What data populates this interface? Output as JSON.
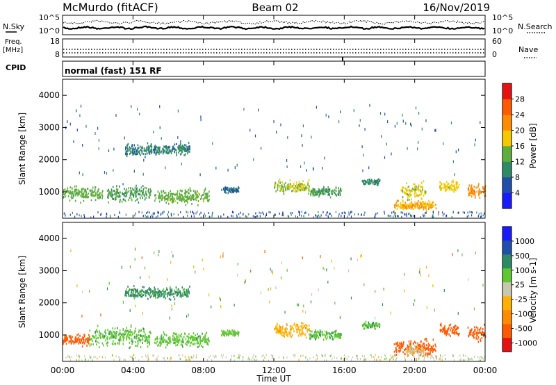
{
  "header": {
    "station": "McMurdo (fitACF)",
    "beam": "Beam 02",
    "date": "16/Nov/2019"
  },
  "noise_panel": {
    "left_label": "N.Sky",
    "right_label": "N.Search",
    "left_ticks": [
      "10^5",
      "10^0"
    ],
    "right_ticks": [
      "10^5",
      "10^0"
    ]
  },
  "freq_panel": {
    "left_label_line1": "Freq.",
    "left_label_line2": "[MHz]",
    "left_ticks": [
      "18",
      "8"
    ],
    "right_label": "Nave",
    "right_ticks": [
      "60",
      "0"
    ]
  },
  "cpid_panel": {
    "label": "CPID",
    "mode_text": "normal (fast) 151 RF"
  },
  "x_axis": {
    "label": "Time UT",
    "tick_labels": [
      "00:00",
      "04:00",
      "08:00",
      "12:00",
      "16:00",
      "20:00",
      "00:00"
    ]
  },
  "colors": {
    "power_scale": [
      "#1a1aff",
      "#1f4faa",
      "#2e8a64",
      "#5fae3d",
      "#f5c800",
      "#ff8c00",
      "#ff5a00",
      "#e81010"
    ],
    "velocity_scale": [
      "#e81010",
      "#ff5a00",
      "#ff8c00",
      "#ffb000",
      "#c8c8b0",
      "#5fc830",
      "#2e8a64",
      "#1f4faa",
      "#1a1aff"
    ]
  },
  "chart_data": [
    {
      "type": "heatmap",
      "title": "",
      "xlabel": "",
      "ylabel": "Slant Range [km]",
      "ylim": [
        180,
        4500
      ],
      "y_ticks": [
        "4000",
        "3000",
        "2000",
        "1000"
      ],
      "x_ticks": [
        "00:00",
        "04:00",
        "08:00",
        "12:00",
        "16:00",
        "20:00",
        "00:00"
      ],
      "colorbar_label": "Power [dB]",
      "colorbar_ticks": [
        "28",
        "24",
        "20",
        "16",
        "12",
        "8",
        "4"
      ],
      "colorbar_range": [
        0,
        32
      ],
      "features": [
        {
          "t_start": 0.0,
          "t_end": 2.3,
          "range_km": 950,
          "spread_km": 300,
          "value": 14
        },
        {
          "t_start": 2.5,
          "t_end": 5.0,
          "range_km": 950,
          "spread_km": 350,
          "value": 12
        },
        {
          "t_start": 5.2,
          "t_end": 8.3,
          "range_km": 850,
          "spread_km": 300,
          "value": 14
        },
        {
          "t_start": 3.5,
          "t_end": 7.2,
          "range_km": 2300,
          "spread_km": 250,
          "value": 9
        },
        {
          "t_start": 9.0,
          "t_end": 10.0,
          "range_km": 1050,
          "spread_km": 120,
          "value": 8
        },
        {
          "t_start": 12.0,
          "t_end": 14.0,
          "range_km": 1150,
          "spread_km": 300,
          "value": 16
        },
        {
          "t_start": 14.0,
          "t_end": 15.8,
          "range_km": 1000,
          "spread_km": 200,
          "value": 12
        },
        {
          "t_start": 17.0,
          "t_end": 18.0,
          "range_km": 1300,
          "spread_km": 150,
          "value": 10
        },
        {
          "t_start": 18.8,
          "t_end": 21.2,
          "range_km": 550,
          "spread_km": 200,
          "value": 20
        },
        {
          "t_start": 19.2,
          "t_end": 20.6,
          "range_km": 1000,
          "spread_km": 350,
          "value": 17
        },
        {
          "t_start": 21.4,
          "t_end": 22.5,
          "range_km": 1150,
          "spread_km": 250,
          "value": 18
        },
        {
          "t_start": 23.0,
          "t_end": 24.0,
          "range_km": 1050,
          "spread_km": 300,
          "value": 22
        }
      ]
    },
    {
      "type": "heatmap",
      "title": "",
      "xlabel": "Time UT",
      "ylabel": "Slant Range [km]",
      "ylim": [
        180,
        4500
      ],
      "y_ticks": [
        "4000",
        "3000",
        "2000",
        "1000"
      ],
      "x_ticks": [
        "00:00",
        "04:00",
        "08:00",
        "12:00",
        "16:00",
        "20:00",
        "00:00"
      ],
      "colorbar_label": "Velocity [m s-1]",
      "colorbar_ticks": [
        "1000",
        "500",
        "100",
        "25",
        "-25",
        "-100",
        "-500",
        "-1000"
      ],
      "colorbar_range": [
        -1000,
        1000
      ],
      "features": [
        {
          "t_start": 0.0,
          "t_end": 1.5,
          "range_km": 850,
          "spread_km": 250,
          "value": -150
        },
        {
          "t_start": 1.5,
          "t_end": 5.0,
          "range_km": 950,
          "spread_km": 400,
          "value": 80
        },
        {
          "t_start": 5.2,
          "t_end": 8.3,
          "range_km": 850,
          "spread_km": 300,
          "value": 70
        },
        {
          "t_start": 3.5,
          "t_end": 7.2,
          "range_km": 2300,
          "spread_km": 250,
          "value": 120
        },
        {
          "t_start": 9.0,
          "t_end": 10.0,
          "range_km": 1050,
          "spread_km": 120,
          "value": 60
        },
        {
          "t_start": 12.0,
          "t_end": 14.0,
          "range_km": 1150,
          "spread_km": 300,
          "value": -60
        },
        {
          "t_start": 14.0,
          "t_end": 15.8,
          "range_km": 1000,
          "spread_km": 200,
          "value": 80
        },
        {
          "t_start": 17.0,
          "t_end": 18.0,
          "range_km": 1300,
          "spread_km": 150,
          "value": 90
        },
        {
          "t_start": 18.8,
          "t_end": 21.2,
          "range_km": 600,
          "spread_km": 350,
          "value": -300
        },
        {
          "t_start": 19.5,
          "t_end": 20.5,
          "range_km": 500,
          "spread_km": 250,
          "value": -10
        },
        {
          "t_start": 21.4,
          "t_end": 22.5,
          "range_km": 1150,
          "spread_km": 250,
          "value": -150
        },
        {
          "t_start": 23.0,
          "t_end": 24.0,
          "range_km": 1050,
          "spread_km": 300,
          "value": -250
        }
      ]
    }
  ]
}
